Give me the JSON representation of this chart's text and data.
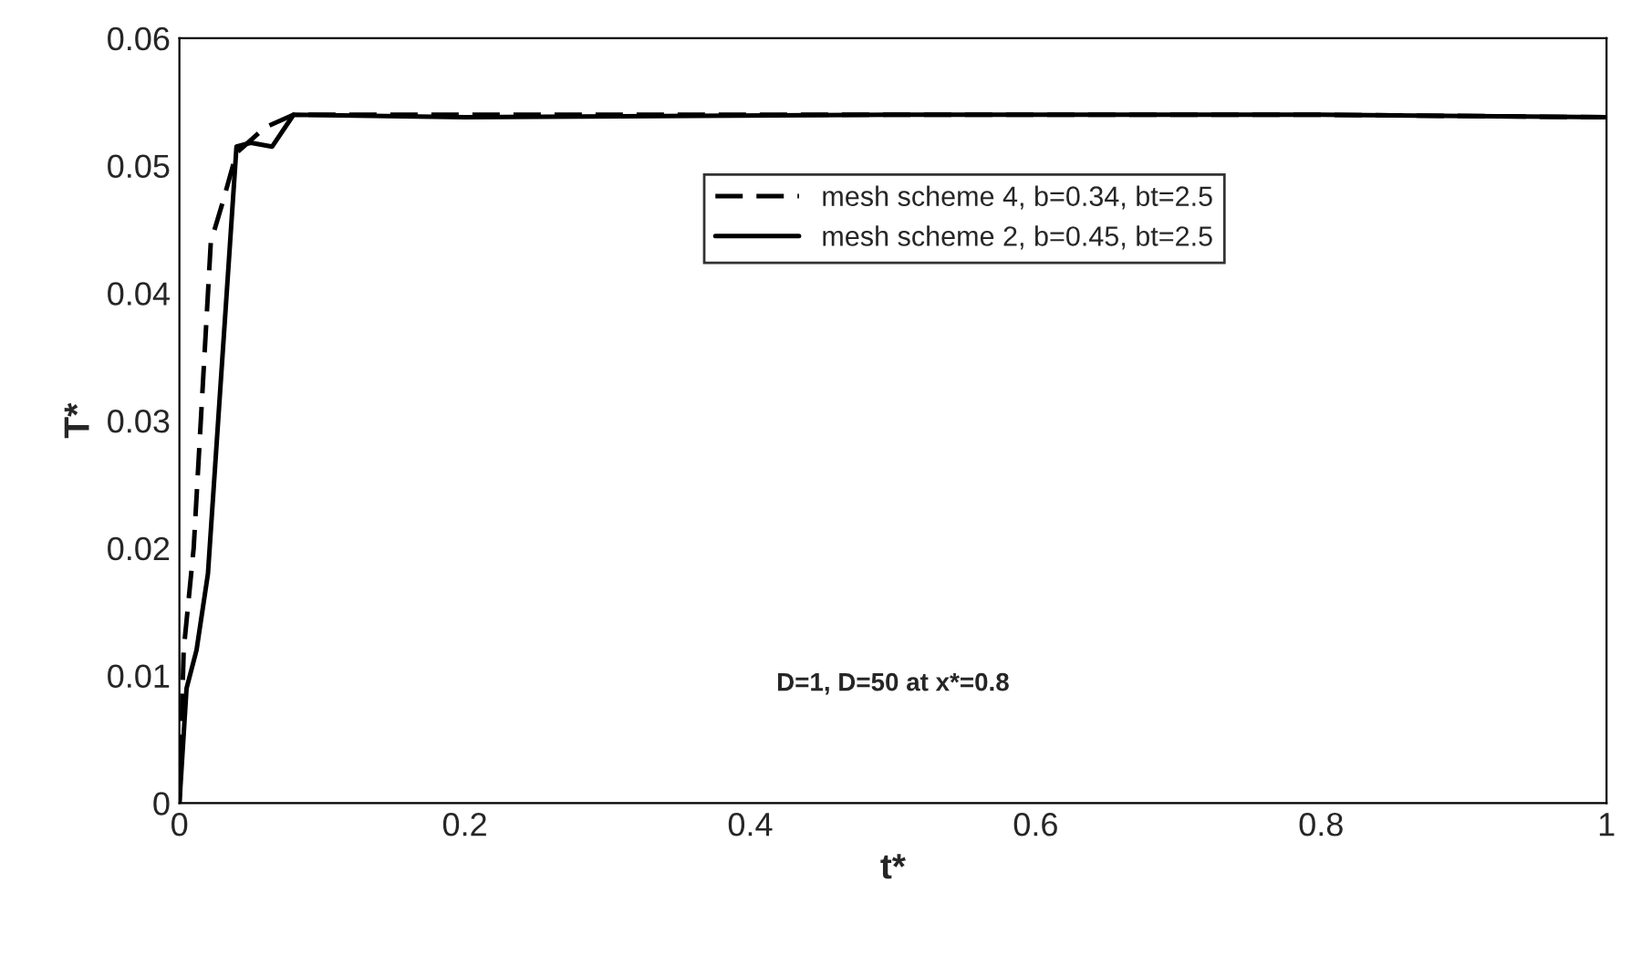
{
  "chart_data": {
    "type": "line",
    "xlabel": "t*",
    "ylabel": "T*",
    "xlim": [
      0,
      1
    ],
    "xticks": [
      {
        "value": 0,
        "label": "0"
      },
      0.2,
      0.4,
      0.6,
      0.8,
      {
        "value": 1,
        "label": "1"
      }
    ],
    "ylim": [
      0,
      0.06
    ],
    "yticks": [
      {
        "value": 0,
        "label": "0"
      },
      0.01,
      0.02,
      0.03,
      0.04,
      0.05,
      0.06
    ],
    "legend": "top",
    "grid": false,
    "annotations": [
      "D=1, D=50 at x*=0.8"
    ],
    "series": [
      {
        "name": "mesh scheme 4, b=0.34, bt=2.5",
        "color": "#000000",
        "line_style": "dashed",
        "x": [
          0,
          0.003,
          0.01,
          0.022,
          0.03,
          0.04,
          0.06,
          0.08,
          0.2,
          0.5,
          0.8,
          1
        ],
        "values": [
          0,
          0.012,
          0.02,
          0.044,
          0.047,
          0.051,
          0.053,
          0.054,
          0.054,
          0.054,
          0.054,
          0.0538
        ]
      },
      {
        "name": "mesh scheme 2, b=0.45, bt=2.5",
        "color": "#000000",
        "line_style": "solid",
        "x": [
          0,
          0.005,
          0.012,
          0.02,
          0.04,
          0.05,
          0.065,
          0.08,
          0.2,
          0.5,
          0.8,
          1
        ],
        "values": [
          0,
          0.009,
          0.012,
          0.018,
          0.0515,
          0.0518,
          0.0515,
          0.054,
          0.0538,
          0.054,
          0.054,
          0.0538
        ]
      }
    ]
  }
}
